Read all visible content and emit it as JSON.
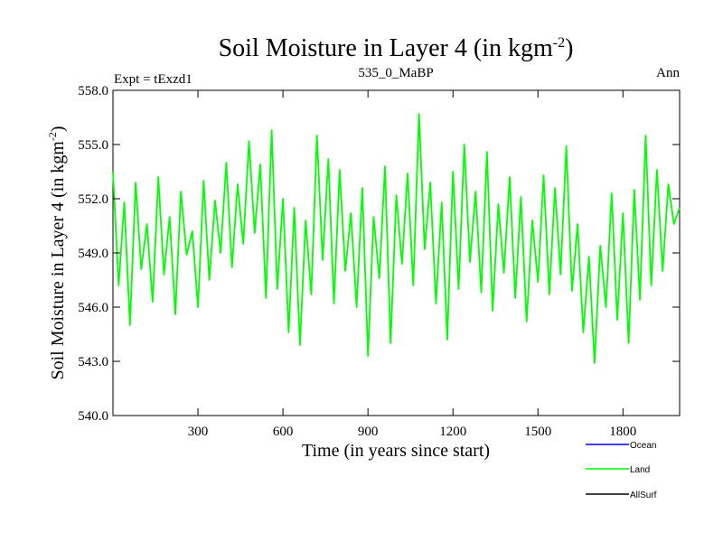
{
  "chart_data": {
    "type": "line",
    "title": "Soil Moisture in Layer 4 (in kgm",
    "title_sup": "-2",
    "title_close": ")",
    "subtitle_left": "Expt = tExzd1",
    "subtitle_center": "535_0_MaBP",
    "subtitle_right": "Ann",
    "xlabel": "Time (in years since start)",
    "ylabel": "Soil Moisture in Layer 4 (in kgm",
    "ylabel_sup": "-2",
    "ylabel_close": ")",
    "xlim": [
      0,
      2000
    ],
    "ylim": [
      540,
      558
    ],
    "xticks": [
      300,
      600,
      900,
      1200,
      1500,
      1800
    ],
    "xtick_labels": [
      "300",
      "600",
      "900",
      "1200",
      "1500",
      "1800"
    ],
    "yticks": [
      540,
      543,
      546,
      549,
      552,
      555,
      558
    ],
    "ytick_labels": [
      "540.0",
      "543.0",
      "546.0",
      "549.0",
      "552.0",
      "555.0",
      "558.0"
    ],
    "legend_position": "bottom-right",
    "series": [
      {
        "name": "Ocean",
        "color": "#0000ff",
        "values": []
      },
      {
        "name": "Land",
        "color": "#00ff00",
        "x": [
          0,
          20,
          40,
          60,
          80,
          100,
          120,
          140,
          160,
          180,
          200,
          220,
          240,
          260,
          280,
          300,
          320,
          340,
          360,
          380,
          400,
          420,
          440,
          460,
          480,
          500,
          520,
          540,
          560,
          580,
          600,
          620,
          640,
          660,
          680,
          700,
          720,
          740,
          760,
          780,
          800,
          820,
          840,
          860,
          880,
          900,
          920,
          940,
          960,
          980,
          1000,
          1020,
          1040,
          1060,
          1080,
          1100,
          1120,
          1140,
          1160,
          1180,
          1200,
          1220,
          1240,
          1260,
          1280,
          1300,
          1320,
          1340,
          1360,
          1380,
          1400,
          1420,
          1440,
          1460,
          1480,
          1500,
          1520,
          1540,
          1560,
          1580,
          1600,
          1620,
          1640,
          1660,
          1680,
          1700,
          1720,
          1740,
          1760,
          1780,
          1800,
          1820,
          1840,
          1860,
          1880,
          1900,
          1920,
          1940,
          1960,
          1980,
          2000
        ],
        "values": [
          553.5,
          547.2,
          551.8,
          545.0,
          552.9,
          548.1,
          550.6,
          546.3,
          553.2,
          547.8,
          551.0,
          545.6,
          552.4,
          548.9,
          550.2,
          546.0,
          553.0,
          547.5,
          551.9,
          549.0,
          554.0,
          548.2,
          552.8,
          549.5,
          555.2,
          550.1,
          553.9,
          546.5,
          555.8,
          547.0,
          552.0,
          544.6,
          551.5,
          543.9,
          550.8,
          546.7,
          555.5,
          548.6,
          554.2,
          546.2,
          553.6,
          548.0,
          551.2,
          546.0,
          552.6,
          543.3,
          551.0,
          547.6,
          553.8,
          544.0,
          552.2,
          548.4,
          553.4,
          547.2,
          556.7,
          549.2,
          552.9,
          546.2,
          551.8,
          544.2,
          553.5,
          547.0,
          555.0,
          548.5,
          552.4,
          546.8,
          554.6,
          545.8,
          551.7,
          547.9,
          553.2,
          546.5,
          552.1,
          545.2,
          550.8,
          547.4,
          553.3,
          546.7,
          552.6,
          547.8,
          554.9,
          546.9,
          550.6,
          544.6,
          548.8,
          542.9,
          549.4,
          546.0,
          552.3,
          545.3,
          551.2,
          544.0,
          552.5,
          546.4,
          555.5,
          547.2,
          553.6,
          548.0,
          552.8,
          550.6,
          551.5
        ]
      },
      {
        "name": "AllSurf",
        "color": "#000000",
        "values": []
      }
    ]
  }
}
